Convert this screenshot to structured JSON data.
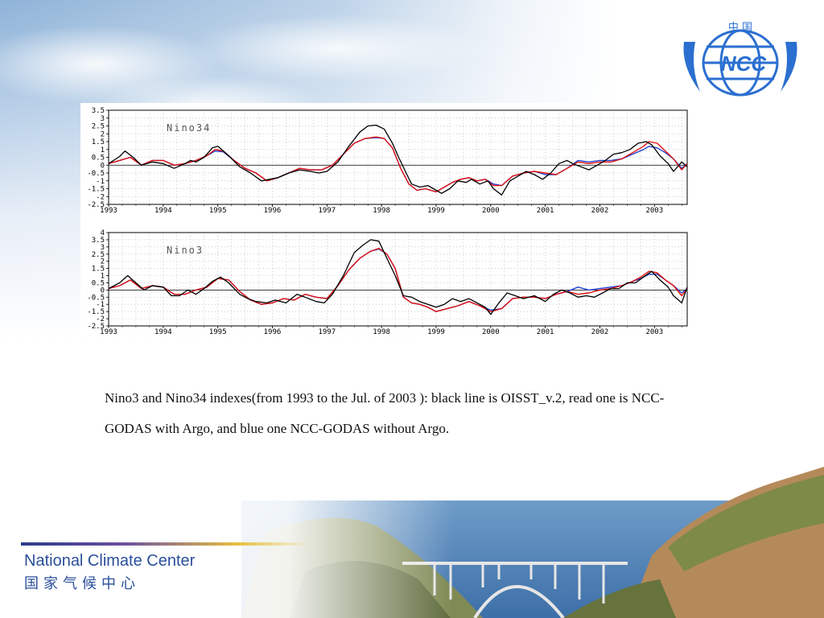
{
  "caption": "Nino3 and Nino34 indexes(from 1993 to the Jul. of 2003 ): black line is OISST_v.2, read one is NCC-GODAS with Argo, and blue one NCC-GODAS without Argo.",
  "footer": {
    "org_en": "National Climate Center",
    "org_zh": "国家气候中心"
  },
  "logo": {
    "top_text": "中 国",
    "main_text": "NCC"
  },
  "colors": {
    "black_series": "#000000",
    "red_series": "#e01010",
    "blue_series": "#2040d0",
    "footer_text": "#2a4f9a",
    "logo_blue": "#2b6fd0"
  },
  "chart_data": [
    {
      "type": "line",
      "title": "Nino34",
      "x_tick_labels": [
        "1993",
        "1994",
        "1995",
        "1996",
        "1997",
        "1998",
        "1999",
        "2000",
        "2001",
        "2002",
        "2003"
      ],
      "y_ticks": [
        3.5,
        3,
        2.5,
        2,
        1.5,
        1,
        0.5,
        0,
        -0.5,
        -1,
        -1.5,
        -2,
        -2.5
      ],
      "y_tick_labels": [
        "3.5",
        "3",
        "2.5",
        "2",
        "1.5",
        "1",
        "0.5",
        "0",
        "-0.5",
        "-1",
        "-1.5",
        "-2",
        "-2.5"
      ],
      "ylim": [
        -2.5,
        3.5
      ],
      "xlim": [
        1993,
        2003.6
      ],
      "grid": true,
      "series": [
        {
          "color": "#000000",
          "x": [
            1993.0,
            1993.2,
            1993.3,
            1993.45,
            1993.6,
            1993.8,
            1994.0,
            1994.2,
            1994.4,
            1994.5,
            1994.6,
            1994.75,
            1994.9,
            1995.0,
            1995.2,
            1995.4,
            1995.6,
            1995.8,
            1995.95,
            1996.1,
            1996.3,
            1996.5,
            1996.7,
            1996.85,
            1997.0,
            1997.2,
            1997.4,
            1997.6,
            1997.75,
            1997.9,
            1998.05,
            1998.2,
            1998.3,
            1998.45,
            1998.55,
            1998.7,
            1998.85,
            1998.95,
            1999.1,
            1999.25,
            1999.4,
            1999.55,
            1999.65,
            1999.8,
            1999.95,
            2000.05,
            2000.2,
            2000.35,
            2000.5,
            2000.65,
            2000.8,
            2000.95,
            2001.1,
            2001.25,
            2001.4,
            2001.5,
            2001.65,
            2001.8,
            2001.95,
            2002.1,
            2002.25,
            2002.4,
            2002.55,
            2002.7,
            2002.85,
            2002.95,
            2003.1,
            2003.25,
            2003.35,
            2003.5,
            2003.6
          ],
          "y": [
            0.1,
            0.55,
            0.9,
            0.5,
            0.0,
            0.2,
            0.1,
            -0.2,
            0.1,
            0.3,
            0.2,
            0.5,
            1.1,
            1.2,
            0.6,
            -0.1,
            -0.5,
            -1.0,
            -0.9,
            -0.8,
            -0.5,
            -0.3,
            -0.4,
            -0.5,
            -0.4,
            0.2,
            1.2,
            2.1,
            2.5,
            2.55,
            2.3,
            1.4,
            0.6,
            -0.5,
            -1.2,
            -1.4,
            -1.3,
            -1.5,
            -1.8,
            -1.5,
            -1.0,
            -1.1,
            -0.9,
            -1.2,
            -1.0,
            -1.5,
            -1.9,
            -1.0,
            -0.7,
            -0.4,
            -0.6,
            -0.9,
            -0.5,
            0.1,
            0.3,
            0.1,
            -0.1,
            -0.3,
            0.0,
            0.3,
            0.7,
            0.8,
            1.0,
            1.4,
            1.5,
            1.3,
            0.6,
            0.1,
            -0.4,
            0.2,
            -0.1
          ]
        },
        {
          "color": "#e01010",
          "x": [
            1993.0,
            1993.2,
            1993.4,
            1993.6,
            1993.8,
            1994.0,
            1994.2,
            1994.4,
            1994.6,
            1994.8,
            1994.95,
            1995.1,
            1995.3,
            1995.5,
            1995.7,
            1995.9,
            1996.1,
            1996.3,
            1996.5,
            1996.7,
            1996.9,
            1997.1,
            1997.3,
            1997.5,
            1997.7,
            1997.9,
            1998.05,
            1998.2,
            1998.35,
            1998.5,
            1998.65,
            1998.8,
            1999.0,
            1999.15,
            1999.3,
            1999.45,
            1999.6,
            1999.75,
            1999.9,
            2000.05,
            2000.2,
            2000.4,
            2000.6,
            2000.8,
            2001.0,
            2001.2,
            2001.4,
            2001.6,
            2001.8,
            2002.0,
            2002.2,
            2002.4,
            2002.6,
            2002.8,
            2002.9,
            2003.05,
            2003.2,
            2003.35,
            2003.5,
            2003.6
          ],
          "y": [
            0.1,
            0.3,
            0.5,
            0.0,
            0.3,
            0.3,
            0.0,
            0.1,
            0.3,
            0.6,
            1.0,
            0.9,
            0.3,
            -0.2,
            -0.5,
            -1.0,
            -0.8,
            -0.5,
            -0.2,
            -0.3,
            -0.3,
            0.0,
            0.7,
            1.4,
            1.7,
            1.8,
            1.7,
            1.1,
            -0.2,
            -1.2,
            -1.6,
            -1.5,
            -1.7,
            -1.4,
            -1.1,
            -0.9,
            -0.8,
            -1.0,
            -0.9,
            -1.3,
            -1.3,
            -0.7,
            -0.5,
            -0.4,
            -0.5,
            -0.6,
            -0.2,
            0.2,
            0.1,
            0.2,
            0.2,
            0.4,
            0.8,
            1.2,
            1.5,
            1.4,
            0.9,
            0.4,
            -0.3,
            0.1
          ]
        },
        {
          "color": "#2040d0",
          "x": [
            1993.0,
            1993.2,
            1993.4,
            1993.6,
            1993.8,
            1994.0,
            1994.2,
            1994.4,
            1994.6,
            1994.8,
            1994.95,
            1995.1,
            1995.3,
            1995.5,
            1995.7,
            1995.9,
            1996.1,
            1996.3,
            1996.5,
            1996.7,
            1996.9,
            1997.1,
            1997.3,
            1997.5,
            1997.7,
            1997.9,
            1998.05,
            1998.2,
            1998.35,
            1998.5,
            1998.65,
            1998.8,
            1999.0,
            1999.15,
            1999.3,
            1999.45,
            1999.6,
            1999.75,
            1999.9,
            2000.05,
            2000.2,
            2000.4,
            2000.6,
            2000.8,
            2001.0,
            2001.2,
            2001.4,
            2001.6,
            2001.8,
            2002.0,
            2002.2,
            2002.4,
            2002.6,
            2002.8,
            2002.9,
            2003.05,
            2003.2,
            2003.35,
            2003.5,
            2003.6
          ],
          "y": [
            0.1,
            0.3,
            0.5,
            0.0,
            0.3,
            0.3,
            0.0,
            0.1,
            0.3,
            0.6,
            0.9,
            0.85,
            0.3,
            -0.2,
            -0.5,
            -1.0,
            -0.8,
            -0.5,
            -0.2,
            -0.3,
            -0.3,
            0.0,
            0.7,
            1.4,
            1.7,
            1.75,
            1.7,
            1.1,
            -0.2,
            -1.2,
            -1.6,
            -1.5,
            -1.7,
            -1.4,
            -1.1,
            -0.9,
            -0.8,
            -1.0,
            -0.9,
            -1.2,
            -1.3,
            -0.7,
            -0.5,
            -0.4,
            -0.6,
            -0.6,
            -0.2,
            0.3,
            0.2,
            0.3,
            0.3,
            0.4,
            0.7,
            1.0,
            1.2,
            1.1,
            0.8,
            0.4,
            -0.2,
            0.1
          ]
        }
      ]
    },
    {
      "type": "line",
      "title": "Nino3",
      "x_tick_labels": [
        "1993",
        "1994",
        "1995",
        "1996",
        "1997",
        "1998",
        "1999",
        "2000",
        "2001",
        "2002",
        "2003"
      ],
      "y_ticks": [
        4,
        3.5,
        3,
        2.5,
        2,
        1.5,
        1,
        0.5,
        0,
        -0.5,
        -1,
        -1.5,
        -2,
        -2.5
      ],
      "y_tick_labels": [
        "4",
        "3.5",
        "3",
        "2.5",
        "2",
        "1.5",
        "1",
        "0.5",
        "0",
        "-0.5",
        "-1",
        "-1.5",
        "-2",
        "-2.5"
      ],
      "ylim": [
        -2.5,
        4
      ],
      "xlim": [
        1993,
        2003.6
      ],
      "grid": true,
      "series": [
        {
          "color": "#000000",
          "x": [
            1993.0,
            1993.2,
            1993.35,
            1993.5,
            1993.65,
            1993.8,
            1994.0,
            1994.15,
            1994.3,
            1994.45,
            1994.6,
            1994.75,
            1994.9,
            1995.05,
            1995.2,
            1995.4,
            1995.55,
            1995.7,
            1995.9,
            1996.05,
            1996.25,
            1996.45,
            1996.6,
            1996.8,
            1996.95,
            1997.1,
            1997.3,
            1997.5,
            1997.65,
            1997.8,
            1997.95,
            1998.1,
            1998.25,
            1998.4,
            1998.55,
            1998.7,
            1998.85,
            1999.0,
            1999.15,
            1999.3,
            1999.45,
            1999.6,
            1999.75,
            1999.9,
            2000.0,
            2000.15,
            2000.3,
            2000.45,
            2000.6,
            2000.8,
            2001.0,
            2001.15,
            2001.3,
            2001.45,
            2001.6,
            2001.75,
            2001.9,
            2002.05,
            2002.2,
            2002.35,
            2002.5,
            2002.65,
            2002.8,
            2002.95,
            2003.1,
            2003.25,
            2003.35,
            2003.5,
            2003.6
          ],
          "y": [
            0.1,
            0.5,
            1.0,
            0.5,
            0.0,
            0.3,
            0.2,
            -0.4,
            -0.4,
            0.0,
            -0.3,
            0.1,
            0.6,
            0.9,
            0.5,
            -0.3,
            -0.6,
            -0.8,
            -0.9,
            -0.7,
            -0.9,
            -0.3,
            -0.5,
            -0.8,
            -0.9,
            -0.3,
            1.0,
            2.6,
            3.1,
            3.5,
            3.4,
            2.2,
            1.0,
            -0.4,
            -0.5,
            -0.8,
            -1.0,
            -1.2,
            -1.0,
            -0.6,
            -0.8,
            -0.6,
            -0.9,
            -1.2,
            -1.7,
            -0.9,
            -0.2,
            -0.4,
            -0.6,
            -0.4,
            -0.8,
            -0.3,
            0.0,
            -0.2,
            -0.5,
            -0.4,
            -0.5,
            -0.2,
            0.1,
            0.1,
            0.5,
            0.5,
            0.9,
            1.3,
            0.7,
            0.2,
            -0.4,
            -0.9,
            0.2
          ]
        },
        {
          "color": "#e01010",
          "x": [
            1993.0,
            1993.2,
            1993.4,
            1993.6,
            1993.8,
            1994.0,
            1994.2,
            1994.4,
            1994.6,
            1994.8,
            1995.0,
            1995.2,
            1995.4,
            1995.6,
            1995.8,
            1996.0,
            1996.2,
            1996.4,
            1996.6,
            1996.8,
            1997.0,
            1997.2,
            1997.4,
            1997.6,
            1997.8,
            1997.95,
            1998.1,
            1998.25,
            1998.4,
            1998.55,
            1998.7,
            1998.85,
            1999.0,
            1999.2,
            1999.4,
            1999.6,
            1999.8,
            2000.0,
            2000.2,
            2000.4,
            2000.6,
            2000.8,
            2001.0,
            2001.2,
            2001.4,
            2001.6,
            2001.8,
            2002.0,
            2002.2,
            2002.4,
            2002.6,
            2002.75,
            2002.9,
            2003.05,
            2003.2,
            2003.35,
            2003.5,
            2003.6
          ],
          "y": [
            0.1,
            0.3,
            0.7,
            0.1,
            0.3,
            0.2,
            -0.3,
            -0.3,
            0.0,
            0.2,
            0.8,
            0.7,
            -0.1,
            -0.7,
            -1.0,
            -0.9,
            -0.6,
            -0.7,
            -0.3,
            -0.5,
            -0.6,
            0.3,
            1.4,
            2.2,
            2.7,
            2.9,
            2.5,
            1.5,
            -0.5,
            -0.9,
            -1.0,
            -1.2,
            -1.5,
            -1.3,
            -1.1,
            -0.8,
            -1.1,
            -1.5,
            -1.3,
            -0.6,
            -0.5,
            -0.5,
            -0.6,
            -0.3,
            -0.1,
            -0.3,
            -0.2,
            0.0,
            0.1,
            0.3,
            0.6,
            0.9,
            1.3,
            1.2,
            0.7,
            0.3,
            -0.4,
            0.1
          ]
        },
        {
          "color": "#2040d0",
          "x": [
            1993.0,
            1993.2,
            1993.4,
            1993.6,
            1993.8,
            1994.0,
            1994.2,
            1994.4,
            1994.6,
            1994.8,
            1995.0,
            1995.2,
            1995.4,
            1995.6,
            1995.8,
            1996.0,
            1996.2,
            1996.4,
            1996.6,
            1996.8,
            1997.0,
            1997.2,
            1997.4,
            1997.6,
            1997.8,
            1997.95,
            1998.1,
            1998.25,
            1998.4,
            1998.55,
            1998.7,
            1998.85,
            1999.0,
            1999.2,
            1999.4,
            1999.6,
            1999.8,
            2000.0,
            2000.2,
            2000.4,
            2000.6,
            2000.8,
            2001.0,
            2001.2,
            2001.4,
            2001.6,
            2001.8,
            2002.0,
            2002.2,
            2002.4,
            2002.6,
            2002.75,
            2002.9,
            2003.05,
            2003.2,
            2003.35,
            2003.5,
            2003.6
          ],
          "y": [
            0.1,
            0.3,
            0.7,
            0.1,
            0.3,
            0.2,
            -0.3,
            -0.3,
            0.0,
            0.2,
            0.8,
            0.7,
            -0.1,
            -0.7,
            -1.0,
            -0.9,
            -0.6,
            -0.7,
            -0.3,
            -0.5,
            -0.6,
            0.3,
            1.4,
            2.2,
            2.7,
            2.85,
            2.5,
            1.5,
            -0.5,
            -0.9,
            -1.0,
            -1.2,
            -1.5,
            -1.3,
            -1.1,
            -0.8,
            -1.1,
            -1.4,
            -1.3,
            -0.6,
            -0.5,
            -0.5,
            -0.6,
            -0.3,
            -0.1,
            0.2,
            0.0,
            0.1,
            0.2,
            0.3,
            0.6,
            0.8,
            1.1,
            1.1,
            0.7,
            0.3,
            -0.2,
            0.1
          ]
        }
      ]
    }
  ]
}
